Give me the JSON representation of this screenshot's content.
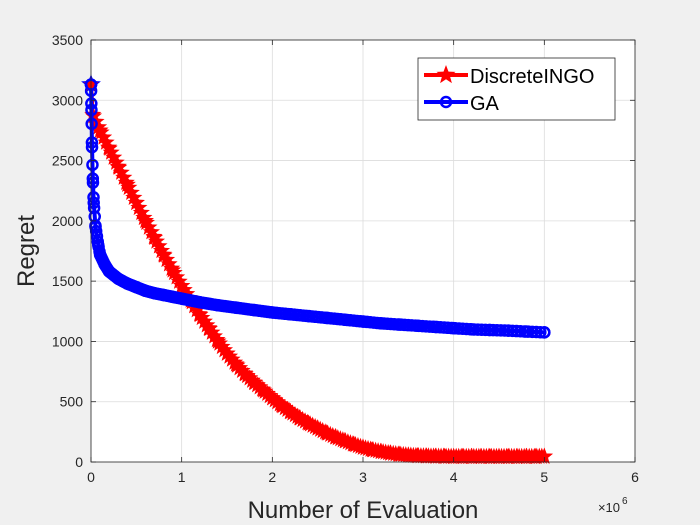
{
  "chart_data": {
    "type": "line",
    "title": "",
    "xlabel": "Number of Evaluation",
    "ylabel": "Regret",
    "x_exponent_label": "×10",
    "x_exponent_power": "6",
    "xlim": [
      0,
      6
    ],
    "ylim": [
      0,
      3500
    ],
    "xticks": [
      0,
      1,
      2,
      3,
      4,
      5,
      6
    ],
    "yticks": [
      0,
      500,
      1000,
      1500,
      2000,
      2500,
      3000,
      3500
    ],
    "xtick_labels": [
      "0",
      "1",
      "2",
      "3",
      "4",
      "5",
      "6"
    ],
    "ytick_labels": [
      "0",
      "500",
      "1000",
      "1500",
      "2000",
      "2500",
      "3000",
      "3500"
    ],
    "grid": true,
    "legend_position": "top-right",
    "series": [
      {
        "name": "DiscreteINGO",
        "color": "#ff0000",
        "marker": "star",
        "x": [
          0,
          0.02,
          0.1,
          0.2,
          0.3,
          0.4,
          0.5,
          0.6,
          0.7,
          0.8,
          0.9,
          1.0,
          1.1,
          1.2,
          1.3,
          1.4,
          1.5,
          1.6,
          1.7,
          1.8,
          1.9,
          2.0,
          2.1,
          2.2,
          2.3,
          2.4,
          2.5,
          2.6,
          2.7,
          2.8,
          2.9,
          3.0,
          3.1,
          3.2,
          3.3,
          3.4,
          3.5,
          3.6,
          3.7,
          3.8,
          3.9,
          4.0,
          4.1,
          4.2,
          4.3,
          4.4,
          4.5,
          4.6,
          4.7,
          4.8,
          4.9,
          5.0
        ],
        "values": [
          3130,
          2880,
          2750,
          2600,
          2450,
          2300,
          2150,
          2000,
          1860,
          1720,
          1590,
          1460,
          1340,
          1220,
          1110,
          1000,
          900,
          810,
          730,
          660,
          595,
          530,
          470,
          415,
          365,
          320,
          280,
          240,
          205,
          175,
          145,
          120,
          100,
          85,
          72,
          62,
          55,
          50,
          48,
          46,
          45,
          44,
          44,
          44,
          44,
          44,
          44,
          44,
          44,
          44,
          44,
          45
        ]
      },
      {
        "name": "GA",
        "color": "#0000ff",
        "marker": "circle",
        "x": [
          0,
          0.005,
          0.01,
          0.02,
          0.03,
          0.05,
          0.08,
          0.1,
          0.15,
          0.2,
          0.3,
          0.4,
          0.5,
          0.6,
          0.7,
          0.8,
          0.9,
          1.0,
          1.2,
          1.4,
          1.6,
          1.8,
          2.0,
          2.2,
          2.4,
          2.6,
          2.8,
          3.0,
          3.2,
          3.4,
          3.6,
          3.8,
          4.0,
          4.2,
          4.4,
          4.6,
          4.8,
          5.0
        ],
        "values": [
          3130,
          2920,
          2650,
          2350,
          2150,
          1950,
          1800,
          1720,
          1640,
          1580,
          1520,
          1480,
          1450,
          1420,
          1400,
          1385,
          1370,
          1355,
          1325,
          1300,
          1280,
          1260,
          1240,
          1225,
          1210,
          1195,
          1180,
          1165,
          1150,
          1140,
          1130,
          1120,
          1110,
          1100,
          1095,
          1090,
          1082,
          1075
        ]
      }
    ]
  }
}
